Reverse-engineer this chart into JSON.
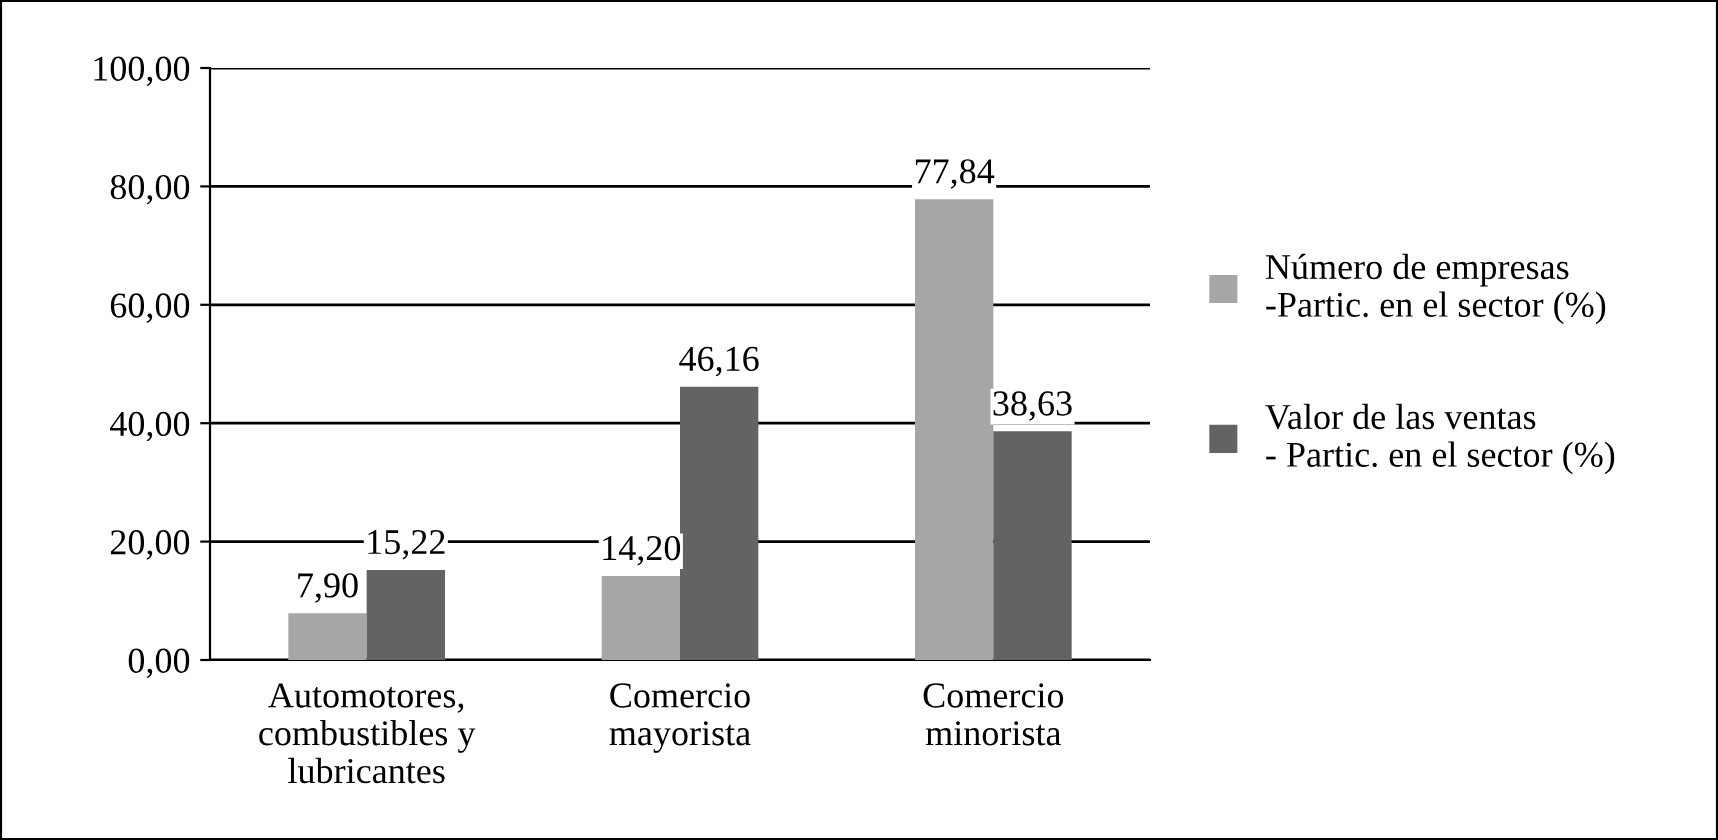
{
  "chart_data": {
    "type": "bar",
    "categories": [
      "Automotores,\ncombustibles y\nlubricantes",
      "Comercio\nmayorista",
      "Comercio\nminorista"
    ],
    "series": [
      {
        "name": "Número de empresas\n-Partic. en el sector (%)",
        "color": "#a6a6a6",
        "values": [
          7.9,
          14.2,
          77.84
        ],
        "value_labels": [
          "7,90",
          "14,20",
          "77,84"
        ]
      },
      {
        "name": "Valor de las ventas\n- Partic. en el sector (%)",
        "color": "#636363",
        "values": [
          15.22,
          46.16,
          38.63
        ],
        "value_labels": [
          "15,22",
          "46,16",
          "38,63"
        ]
      }
    ],
    "ylim": [
      0,
      100
    ],
    "yticks": [
      {
        "value": 0,
        "label": "0,00"
      },
      {
        "value": 20,
        "label": "20,00"
      },
      {
        "value": 40,
        "label": "40,00"
      },
      {
        "value": 60,
        "label": "60,00"
      },
      {
        "value": 80,
        "label": "80,00"
      },
      {
        "value": 100,
        "label": "100,00"
      }
    ],
    "grid": "y",
    "legend": "right"
  }
}
